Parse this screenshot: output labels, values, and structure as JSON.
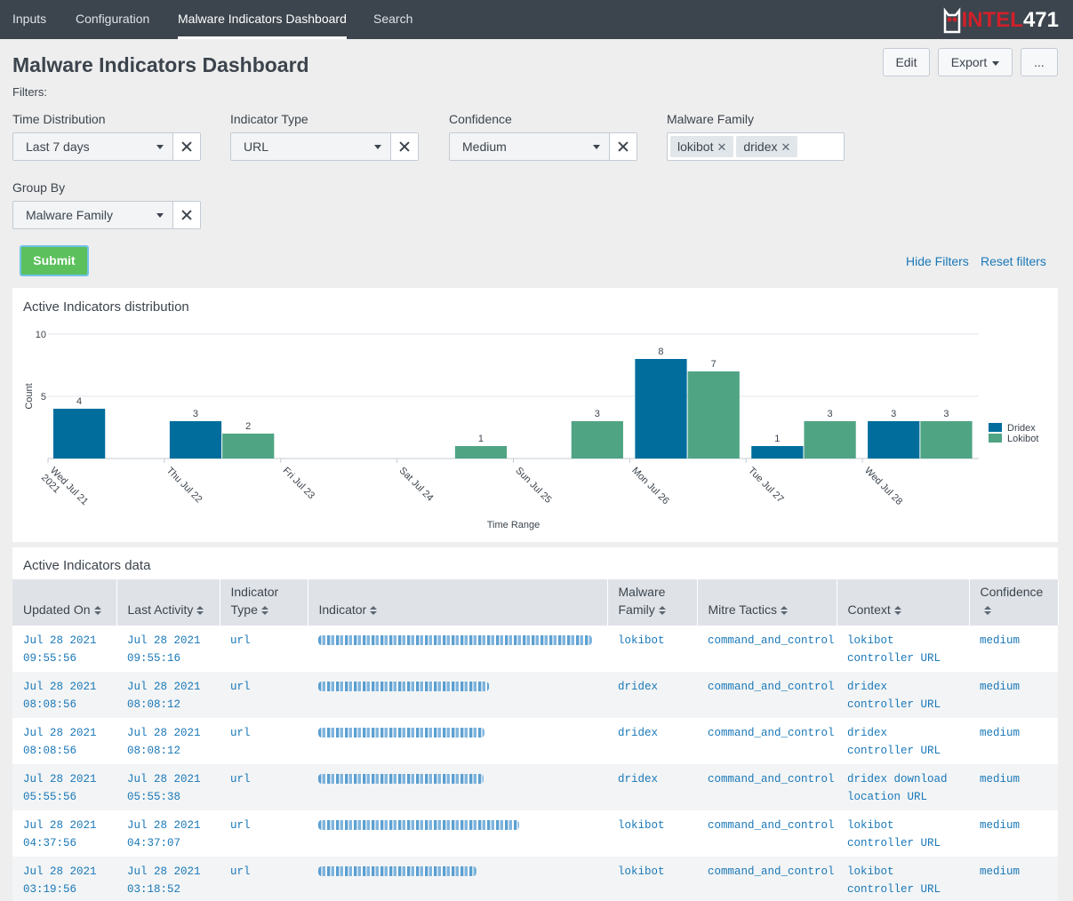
{
  "nav": {
    "tabs": [
      "Inputs",
      "Configuration",
      "Malware Indicators Dashboard",
      "Search"
    ],
    "active": "Malware Indicators Dashboard",
    "logo_a": "INTEL",
    "logo_b": "471"
  },
  "header": {
    "title": "Malware Indicators Dashboard",
    "edit_label": "Edit",
    "export_label": "Export",
    "more_label": "..."
  },
  "filters": {
    "label": "Filters:",
    "time_distribution": {
      "label": "Time Distribution",
      "value": "Last 7 days"
    },
    "indicator_type": {
      "label": "Indicator Type",
      "value": "URL"
    },
    "confidence": {
      "label": "Confidence",
      "value": "Medium"
    },
    "malware_family": {
      "label": "Malware Family",
      "values": [
        "lokibot",
        "dridex"
      ]
    },
    "group_by": {
      "label": "Group By",
      "value": "Malware Family"
    },
    "submit_label": "Submit",
    "hide_filters_label": "Hide Filters",
    "reset_filters_label": "Reset filters"
  },
  "chart_panel": {
    "title": "Active Indicators distribution"
  },
  "chart_data": {
    "type": "bar",
    "title": "Active Indicators distribution",
    "xlabel": "Time Range",
    "ylabel": "Count",
    "ylim": [
      0,
      10
    ],
    "yticks": [
      5,
      10
    ],
    "categories": [
      "Wed Jul 21 2021",
      "Thu Jul 22",
      "Fri Jul 23",
      "Sat Jul 24",
      "Sun Jul 25",
      "Mon Jul 26",
      "Tue Jul 27",
      "Wed Jul 28"
    ],
    "series": [
      {
        "name": "Dridex",
        "color": "#006d9c",
        "values": [
          4,
          3,
          0,
          0,
          0,
          8,
          1,
          3
        ]
      },
      {
        "name": "Lokibot",
        "color": "#4fa484",
        "values": [
          0,
          2,
          0,
          1,
          3,
          7,
          3,
          3
        ]
      }
    ],
    "legend": "right"
  },
  "table_panel": {
    "title": "Active Indicators data",
    "columns": [
      "Updated On",
      "Last Activity",
      "Indicator Type",
      "Indicator",
      "Malware Family",
      "Mitre Tactics",
      "Context",
      "Confidence"
    ],
    "rows": [
      {
        "updated_on": "Jul 28 2021 09:55:56",
        "last_activity": "Jul 28 2021 09:55:16",
        "type": "url",
        "family": "lokibot",
        "tactics": "command_and_control",
        "context": "lokibot controller URL",
        "confidence": "medium"
      },
      {
        "updated_on": "Jul 28 2021 08:08:56",
        "last_activity": "Jul 28 2021 08:08:12",
        "type": "url",
        "family": "dridex",
        "tactics": "command_and_control",
        "context": "dridex controller URL",
        "confidence": "medium"
      },
      {
        "updated_on": "Jul 28 2021 08:08:56",
        "last_activity": "Jul 28 2021 08:08:12",
        "type": "url",
        "family": "dridex",
        "tactics": "command_and_control",
        "context": "dridex controller URL",
        "confidence": "medium"
      },
      {
        "updated_on": "Jul 28 2021 05:55:56",
        "last_activity": "Jul 28 2021 05:55:38",
        "type": "url",
        "family": "dridex",
        "tactics": "command_and_control",
        "context": "dridex download location URL",
        "confidence": "medium"
      },
      {
        "updated_on": "Jul 28 2021 04:37:56",
        "last_activity": "Jul 28 2021 04:37:07",
        "type": "url",
        "family": "lokibot",
        "tactics": "command_and_control",
        "context": "lokibot controller URL",
        "confidence": "medium"
      },
      {
        "updated_on": "Jul 28 2021 03:19:56",
        "last_activity": "Jul 28 2021 03:18:52",
        "type": "url",
        "family": "lokibot",
        "tactics": "command_and_control",
        "context": "lokibot controller URL",
        "confidence": "medium"
      }
    ]
  }
}
